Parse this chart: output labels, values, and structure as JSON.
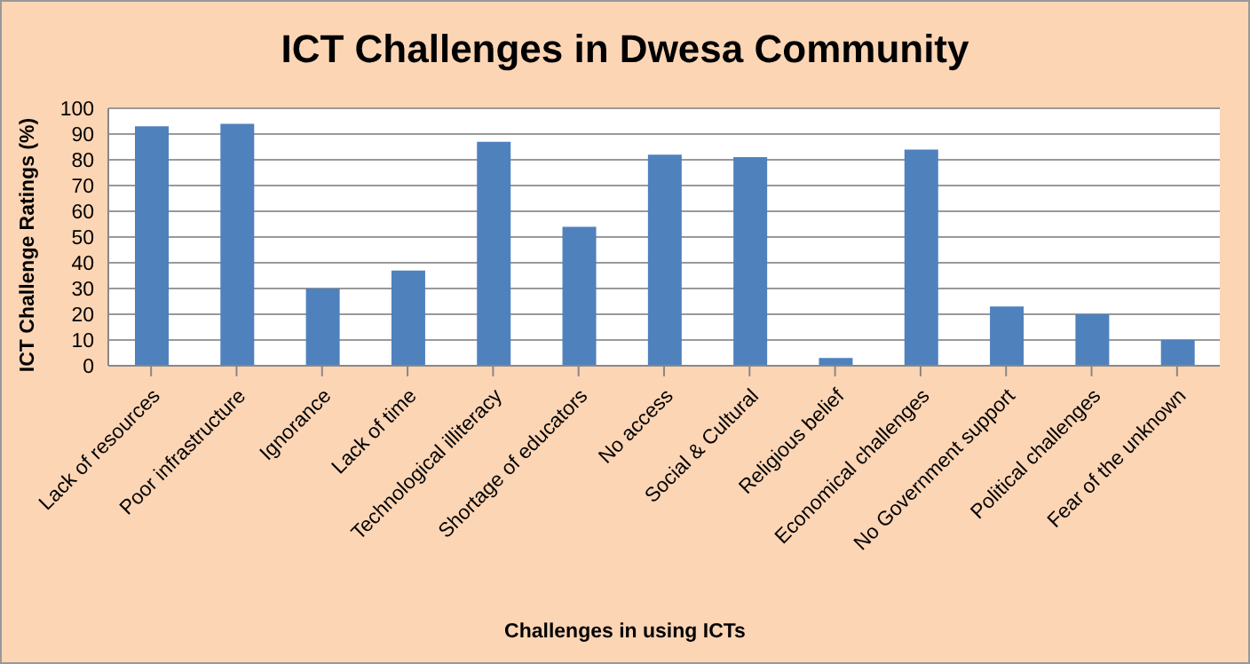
{
  "chart_data": {
    "type": "bar",
    "title": "ICT Challenges in Dwesa Community",
    "xlabel": "Challenges in using  ICTs",
    "ylabel": "ICT Challenge Ratings (%)",
    "categories": [
      "Lack of resources",
      "Poor infrastructure",
      "Ignorance",
      "Lack of time",
      "Technological illiteracy",
      "Shortage of educators",
      "No access",
      "Social & Cultural",
      "Religious belief",
      "Economical challenges",
      "No Government support",
      "Political challenges",
      "Fear of the unknown"
    ],
    "values": [
      93,
      94,
      30,
      37,
      87,
      54,
      82,
      81,
      3,
      84,
      23,
      20,
      10
    ],
    "color": "#4f81bd",
    "ylim": [
      0,
      100
    ],
    "yticks": [
      0,
      10,
      20,
      30,
      40,
      50,
      60,
      70,
      80,
      90,
      100
    ],
    "grid": "y",
    "legend": false
  }
}
